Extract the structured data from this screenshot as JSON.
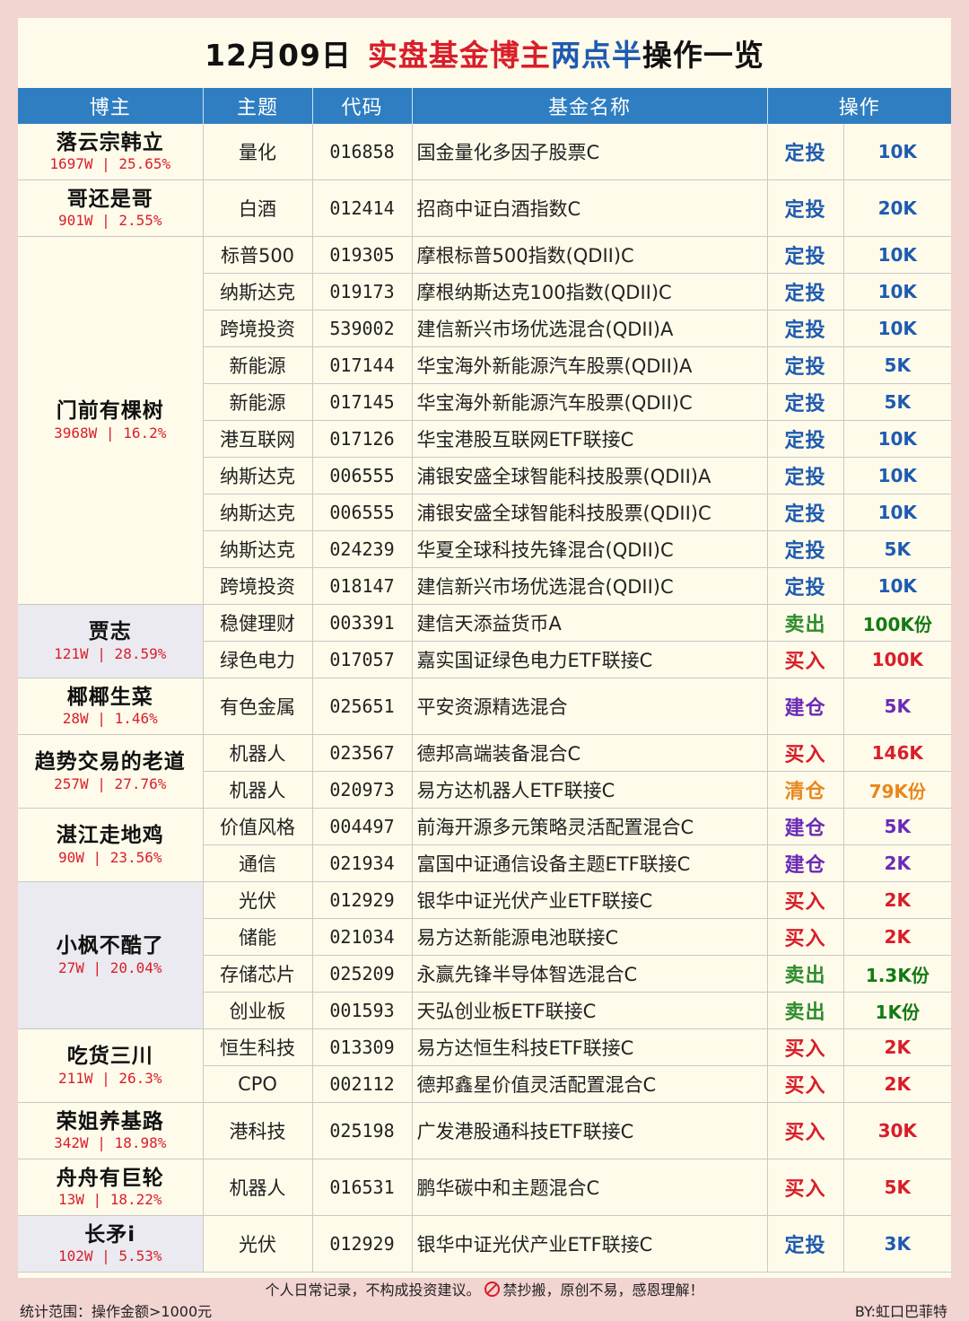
{
  "title": {
    "date": "12月09日",
    "part1": "实盘基金博主",
    "part2": "两点半",
    "part3": "操作一览"
  },
  "headers": [
    "博主",
    "主题",
    "代码",
    "基金名称",
    "操作"
  ],
  "colors": {
    "定投": "#1e5bb0",
    "卖出": "#2e8b2e",
    "买入": "#d81e2a",
    "建仓": "#6a2bb8",
    "清仓": "#e8871e"
  },
  "amount_colors": {
    "定投": "#1e5bb0",
    "卖出": "#137a13",
    "买入": "#d81e2a",
    "建仓": "#6a2bb8",
    "清仓": "#e8871e"
  },
  "bloggers": [
    {
      "name": "落云宗韩立",
      "stats": "1697W | 25.65%",
      "tall": true,
      "shade": false,
      "rows": [
        {
          "theme": "量化",
          "code": "016858",
          "fund": "国金量化多因子股票C",
          "op": "定投",
          "amount": "10K"
        }
      ]
    },
    {
      "name": "哥还是哥",
      "stats": "901W | 2.55%",
      "tall": true,
      "shade": false,
      "rows": [
        {
          "theme": "白酒",
          "code": "012414",
          "fund": "招商中证白酒指数C",
          "op": "定投",
          "amount": "20K"
        }
      ]
    },
    {
      "name": "门前有棵树",
      "stats": "3968W | 16.2%",
      "tall": false,
      "shade": false,
      "rows": [
        {
          "theme": "标普500",
          "code": "019305",
          "fund": "摩根标普500指数(QDII)C",
          "op": "定投",
          "amount": "10K"
        },
        {
          "theme": "纳斯达克",
          "code": "019173",
          "fund": "摩根纳斯达克100指数(QDII)C",
          "op": "定投",
          "amount": "10K"
        },
        {
          "theme": "跨境投资",
          "code": "539002",
          "fund": "建信新兴市场优选混合(QDII)A",
          "op": "定投",
          "amount": "10K"
        },
        {
          "theme": "新能源",
          "code": "017144",
          "fund": "华宝海外新能源汽车股票(QDII)A",
          "op": "定投",
          "amount": "5K"
        },
        {
          "theme": "新能源",
          "code": "017145",
          "fund": "华宝海外新能源汽车股票(QDII)C",
          "op": "定投",
          "amount": "5K"
        },
        {
          "theme": "港互联网",
          "code": "017126",
          "fund": "华宝港股互联网ETF联接C",
          "op": "定投",
          "amount": "10K"
        },
        {
          "theme": "纳斯达克",
          "code": "006555",
          "fund": "浦银安盛全球智能科技股票(QDII)A",
          "op": "定投",
          "amount": "10K"
        },
        {
          "theme": "纳斯达克",
          "code": "006555",
          "fund": "浦银安盛全球智能科技股票(QDII)C",
          "op": "定投",
          "amount": "10K"
        },
        {
          "theme": "纳斯达克",
          "code": "024239",
          "fund": "华夏全球科技先锋混合(QDII)C",
          "op": "定投",
          "amount": "5K"
        },
        {
          "theme": "跨境投资",
          "code": "018147",
          "fund": "建信新兴市场优选混合(QDII)C",
          "op": "定投",
          "amount": "10K"
        }
      ]
    },
    {
      "name": "贾志",
      "stats": "121W | 28.59%",
      "tall": false,
      "shade": true,
      "rows": [
        {
          "theme": "稳健理财",
          "code": "003391",
          "fund": "建信天添益货币A",
          "op": "卖出",
          "amount": "100K份"
        },
        {
          "theme": "绿色电力",
          "code": "017057",
          "fund": "嘉实国证绿色电力ETF联接C",
          "op": "买入",
          "amount": "100K"
        }
      ]
    },
    {
      "name": "椰椰生菜",
      "stats": "28W | 1.46%",
      "tall": true,
      "shade": false,
      "rows": [
        {
          "theme": "有色金属",
          "code": "025651",
          "fund": "平安资源精选混合",
          "op": "建仓",
          "amount": "5K"
        }
      ]
    },
    {
      "name": "趋势交易的老道",
      "stats": "257W | 27.76%",
      "tall": false,
      "shade": false,
      "rows": [
        {
          "theme": "机器人",
          "code": "023567",
          "fund": "德邦高端装备混合C",
          "op": "买入",
          "amount": "146K"
        },
        {
          "theme": "机器人",
          "code": "020973",
          "fund": "易方达机器人ETF联接C",
          "op": "清仓",
          "amount": "79K份"
        }
      ]
    },
    {
      "name": "湛江走地鸡",
      "stats": "90W | 23.56%",
      "tall": false,
      "shade": false,
      "rows": [
        {
          "theme": "价值风格",
          "code": "004497",
          "fund": "前海开源多元策略灵活配置混合C",
          "op": "建仓",
          "amount": "5K"
        },
        {
          "theme": "通信",
          "code": "021934",
          "fund": "富国中证通信设备主题ETF联接C",
          "op": "建仓",
          "amount": "2K"
        }
      ]
    },
    {
      "name": "小枫不酷了",
      "stats": "27W | 20.04%",
      "tall": false,
      "shade": true,
      "rows": [
        {
          "theme": "光伏",
          "code": "012929",
          "fund": "银华中证光伏产业ETF联接C",
          "op": "买入",
          "amount": "2K"
        },
        {
          "theme": "储能",
          "code": "021034",
          "fund": "易方达新能源电池联接C",
          "op": "买入",
          "amount": "2K"
        },
        {
          "theme": "存储芯片",
          "code": "025209",
          "fund": "永赢先锋半导体智选混合C",
          "op": "卖出",
          "amount": "1.3K份"
        },
        {
          "theme": "创业板",
          "code": "001593",
          "fund": "天弘创业板ETF联接C",
          "op": "卖出",
          "amount": "1K份"
        }
      ]
    },
    {
      "name": "吃货三川",
      "stats": "211W | 26.3%",
      "tall": false,
      "shade": false,
      "rows": [
        {
          "theme": "恒生科技",
          "code": "013309",
          "fund": "易方达恒生科技ETF联接C",
          "op": "买入",
          "amount": "2K"
        },
        {
          "theme": "CPO",
          "code": "002112",
          "fund": "德邦鑫星价值灵活配置混合C",
          "op": "买入",
          "amount": "2K"
        }
      ]
    },
    {
      "name": "荣姐养基路",
      "stats": "342W | 18.98%",
      "tall": true,
      "shade": false,
      "rows": [
        {
          "theme": "港科技",
          "code": "025198",
          "fund": "广发港股通科技ETF联接C",
          "op": "买入",
          "amount": "30K"
        }
      ]
    },
    {
      "name": "舟舟有巨轮",
      "stats": "13W | 18.22%",
      "tall": true,
      "shade": false,
      "rows": [
        {
          "theme": "机器人",
          "code": "016531",
          "fund": "鹏华碳中和主题混合C",
          "op": "买入",
          "amount": "5K"
        }
      ]
    },
    {
      "name": "长矛i",
      "stats": "102W | 5.53%",
      "tall": true,
      "shade": true,
      "rows": [
        {
          "theme": "光伏",
          "code": "012929",
          "fund": "银华中证光伏产业ETF联接C",
          "op": "定投",
          "amount": "3K"
        }
      ]
    }
  ],
  "footer": {
    "note_left": "个人日常记录，不构成投资建议。",
    "forbid_icon": "forbidden-sign-icon",
    "note_right": "禁抄搬，原创不易，感恩理解！",
    "range": "统计范围：操作金额>1000元",
    "byline": "BY:虹口巴菲特"
  }
}
